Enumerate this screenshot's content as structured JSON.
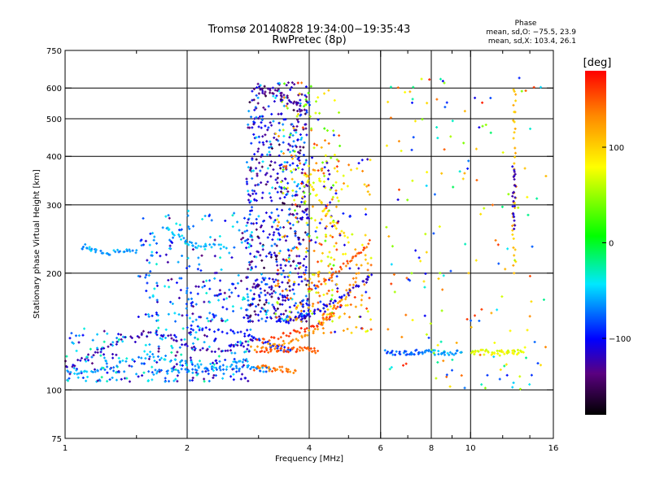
{
  "chart_data": {
    "type": "scatter",
    "title": "Tromsø 20140828 19:34:00−19:35:43",
    "subtitle": "RwPretec (8p)",
    "xlabel": "Frequency [MHz]",
    "ylabel": "Stationary phase Virtual Height [km]",
    "x_scale": "log",
    "y_scale": "log",
    "xlim": [
      1,
      16
    ],
    "ylim": [
      75,
      750
    ],
    "x_ticks": [
      1,
      2,
      4,
      6,
      8,
      10,
      16
    ],
    "x_tick_labels": [
      "1",
      "2",
      "4",
      "6",
      "8",
      "10",
      "16"
    ],
    "x_grid": [
      2,
      4,
      6,
      8,
      10
    ],
    "x_minor": [
      1.5,
      3,
      5,
      7,
      9,
      12,
      14
    ],
    "y_ticks": [
      75,
      100,
      200,
      300,
      400,
      500,
      600,
      750
    ],
    "y_tick_labels": [
      "75",
      "100",
      "200",
      "300",
      "400",
      "500",
      "600",
      "750"
    ],
    "y_grid": [
      100,
      200,
      300,
      400,
      500,
      600
    ],
    "grid": true,
    "colorbar": {
      "label": "[deg]",
      "range": [
        -180,
        180
      ],
      "ticks": [
        100,
        0,
        -100
      ],
      "tick_labels": [
        "100",
        "0",
        "−100"
      ],
      "colormap": "rainbow"
    },
    "phase_stats": {
      "heading": "Phase",
      "line_o": "mean, sd,O: −75.5, 23.9",
      "line_x": "mean, sd,X: 103.4, 26.1"
    },
    "traces": [
      {
        "x": [
          1.02,
          1.15,
          1.3,
          1.5,
          1.7,
          1.9,
          2.1,
          2.4,
          2.7,
          2.9
        ],
        "y": [
          115,
          122,
          132,
          138,
          140,
          134,
          128,
          126,
          130,
          134
        ],
        "phase": -120
      },
      {
        "x": [
          1.02,
          1.12,
          1.25,
          1.4,
          1.6,
          1.8,
          2.0,
          2.3,
          2.6,
          2.8
        ],
        "y": [
          112,
          110,
          113,
          118,
          122,
          120,
          117,
          114,
          117,
          120
        ],
        "phase": -60
      },
      {
        "x": [
          1.1,
          1.15,
          1.2,
          1.3,
          1.4,
          1.5
        ],
        "y": [
          235,
          232,
          228,
          226,
          227,
          229
        ],
        "phase": -60
      },
      {
        "x": [
          1.75,
          1.9,
          2.0,
          2.1,
          2.3,
          2.5
        ],
        "y": [
          260,
          250,
          240,
          235,
          236,
          232
        ],
        "phase": -55
      },
      {
        "x": [
          1.6,
          1.8,
          2.0,
          2.2,
          2.5,
          2.8,
          3.0,
          3.2
        ],
        "y": [
          112,
          112,
          113,
          113,
          113,
          114,
          113,
          113
        ],
        "phase": -70
      },
      {
        "x": [
          2.0,
          2.2,
          2.5,
          2.8,
          3.0,
          3.2,
          3.4,
          3.6
        ],
        "y": [
          145,
          143,
          142,
          138,
          134,
          130,
          128,
          127
        ],
        "phase": -95
      },
      {
        "x": [
          3.0,
          3.2,
          3.4,
          3.6,
          3.8,
          4.0,
          4.2
        ],
        "y": [
          126,
          126,
          127,
          127,
          127,
          127,
          126
        ],
        "phase": 150
      },
      {
        "x": [
          2.95,
          3.1,
          3.3,
          3.5,
          3.7
        ],
        "y": [
          114,
          114,
          113,
          113,
          112
        ],
        "phase": 140
      },
      {
        "x": [
          3.0,
          3.3,
          3.6,
          3.9,
          4.2,
          4.5,
          4.8
        ],
        "y": [
          133,
          137,
          140,
          143,
          147,
          155,
          165
        ],
        "phase": 160
      },
      {
        "x": [
          2.9,
          3.2,
          3.5,
          3.8,
          4.1,
          4.4,
          4.7,
          5.0,
          5.3
        ],
        "y": [
          128,
          130,
          132,
          136,
          142,
          152,
          165,
          180,
          200
        ],
        "phase": 125
      },
      {
        "x": [
          3.5,
          3.8,
          4.0,
          4.3,
          4.6,
          5.0,
          5.4,
          5.7
        ],
        "y": [
          150,
          153,
          156,
          162,
          170,
          178,
          188,
          198
        ],
        "phase": -110
      },
      {
        "x": [
          4.0,
          4.3,
          4.6,
          5.0,
          5.3,
          5.6
        ],
        "y": [
          180,
          190,
          200,
          212,
          225,
          238
        ],
        "phase": 150
      },
      {
        "x": [
          3.0,
          3.2,
          3.4,
          3.6,
          3.8
        ],
        "y": [
          600,
          590,
          580,
          560,
          540
        ],
        "phase": -130
      },
      {
        "x": [
          3.9,
          4.1,
          4.3,
          4.6,
          5.0
        ],
        "y": [
          360,
          330,
          300,
          270,
          240
        ],
        "phase": 90
      },
      {
        "x": [
          6.2,
          6.5,
          6.9,
          7.2,
          7.6
        ],
        "y": [
          125,
          125,
          124,
          125,
          125
        ],
        "phase": -80
      },
      {
        "x": [
          7.6,
          8.0,
          8.5,
          9.0,
          9.5
        ],
        "y": [
          125,
          125,
          125,
          124,
          125
        ],
        "phase": -60
      },
      {
        "x": [
          10.0,
          10.5,
          11.0,
          11.5,
          12.0,
          12.5,
          13.0,
          13.5
        ],
        "y": [
          125,
          125,
          125,
          125,
          125,
          125,
          125,
          125
        ],
        "phase": 75
      },
      {
        "x": [
          12.8,
          12.8,
          12.8,
          12.8,
          12.8,
          12.8
        ],
        "y": [
          600,
          500,
          400,
          300,
          250,
          200
        ],
        "phase": 110
      },
      {
        "x": [
          12.8,
          12.8,
          12.8,
          12.8
        ],
        "y": [
          380,
          340,
          300,
          260
        ],
        "phase": -120
      }
    ],
    "clouds": [
      {
        "xr": [
          1.0,
          2.9
        ],
        "yr": [
          105,
          145
        ],
        "n": 260,
        "phases": [
          -70,
          -120,
          -40
        ]
      },
      {
        "xr": [
          1.5,
          2.9
        ],
        "yr": [
          150,
          290
        ],
        "n": 220,
        "phases": [
          -80,
          -120,
          -50
        ]
      },
      {
        "xr": [
          2.8,
          4.0
        ],
        "yr": [
          150,
          620
        ],
        "n": 620,
        "phases": [
          -120,
          -100,
          -140,
          -60
        ]
      },
      {
        "xr": [
          3.3,
          4.8
        ],
        "yr": [
          150,
          620
        ],
        "n": 280,
        "phases": [
          40,
          80,
          120,
          150,
          -100
        ]
      },
      {
        "xr": [
          4.2,
          5.7
        ],
        "yr": [
          140,
          400
        ],
        "n": 130,
        "phases": [
          150,
          110,
          -110,
          80
        ]
      },
      {
        "xr": [
          6.2,
          15.5
        ],
        "yr": [
          100,
          650
        ],
        "n": 180,
        "phases": [
          60,
          100,
          150,
          -90,
          -30
        ]
      }
    ]
  }
}
